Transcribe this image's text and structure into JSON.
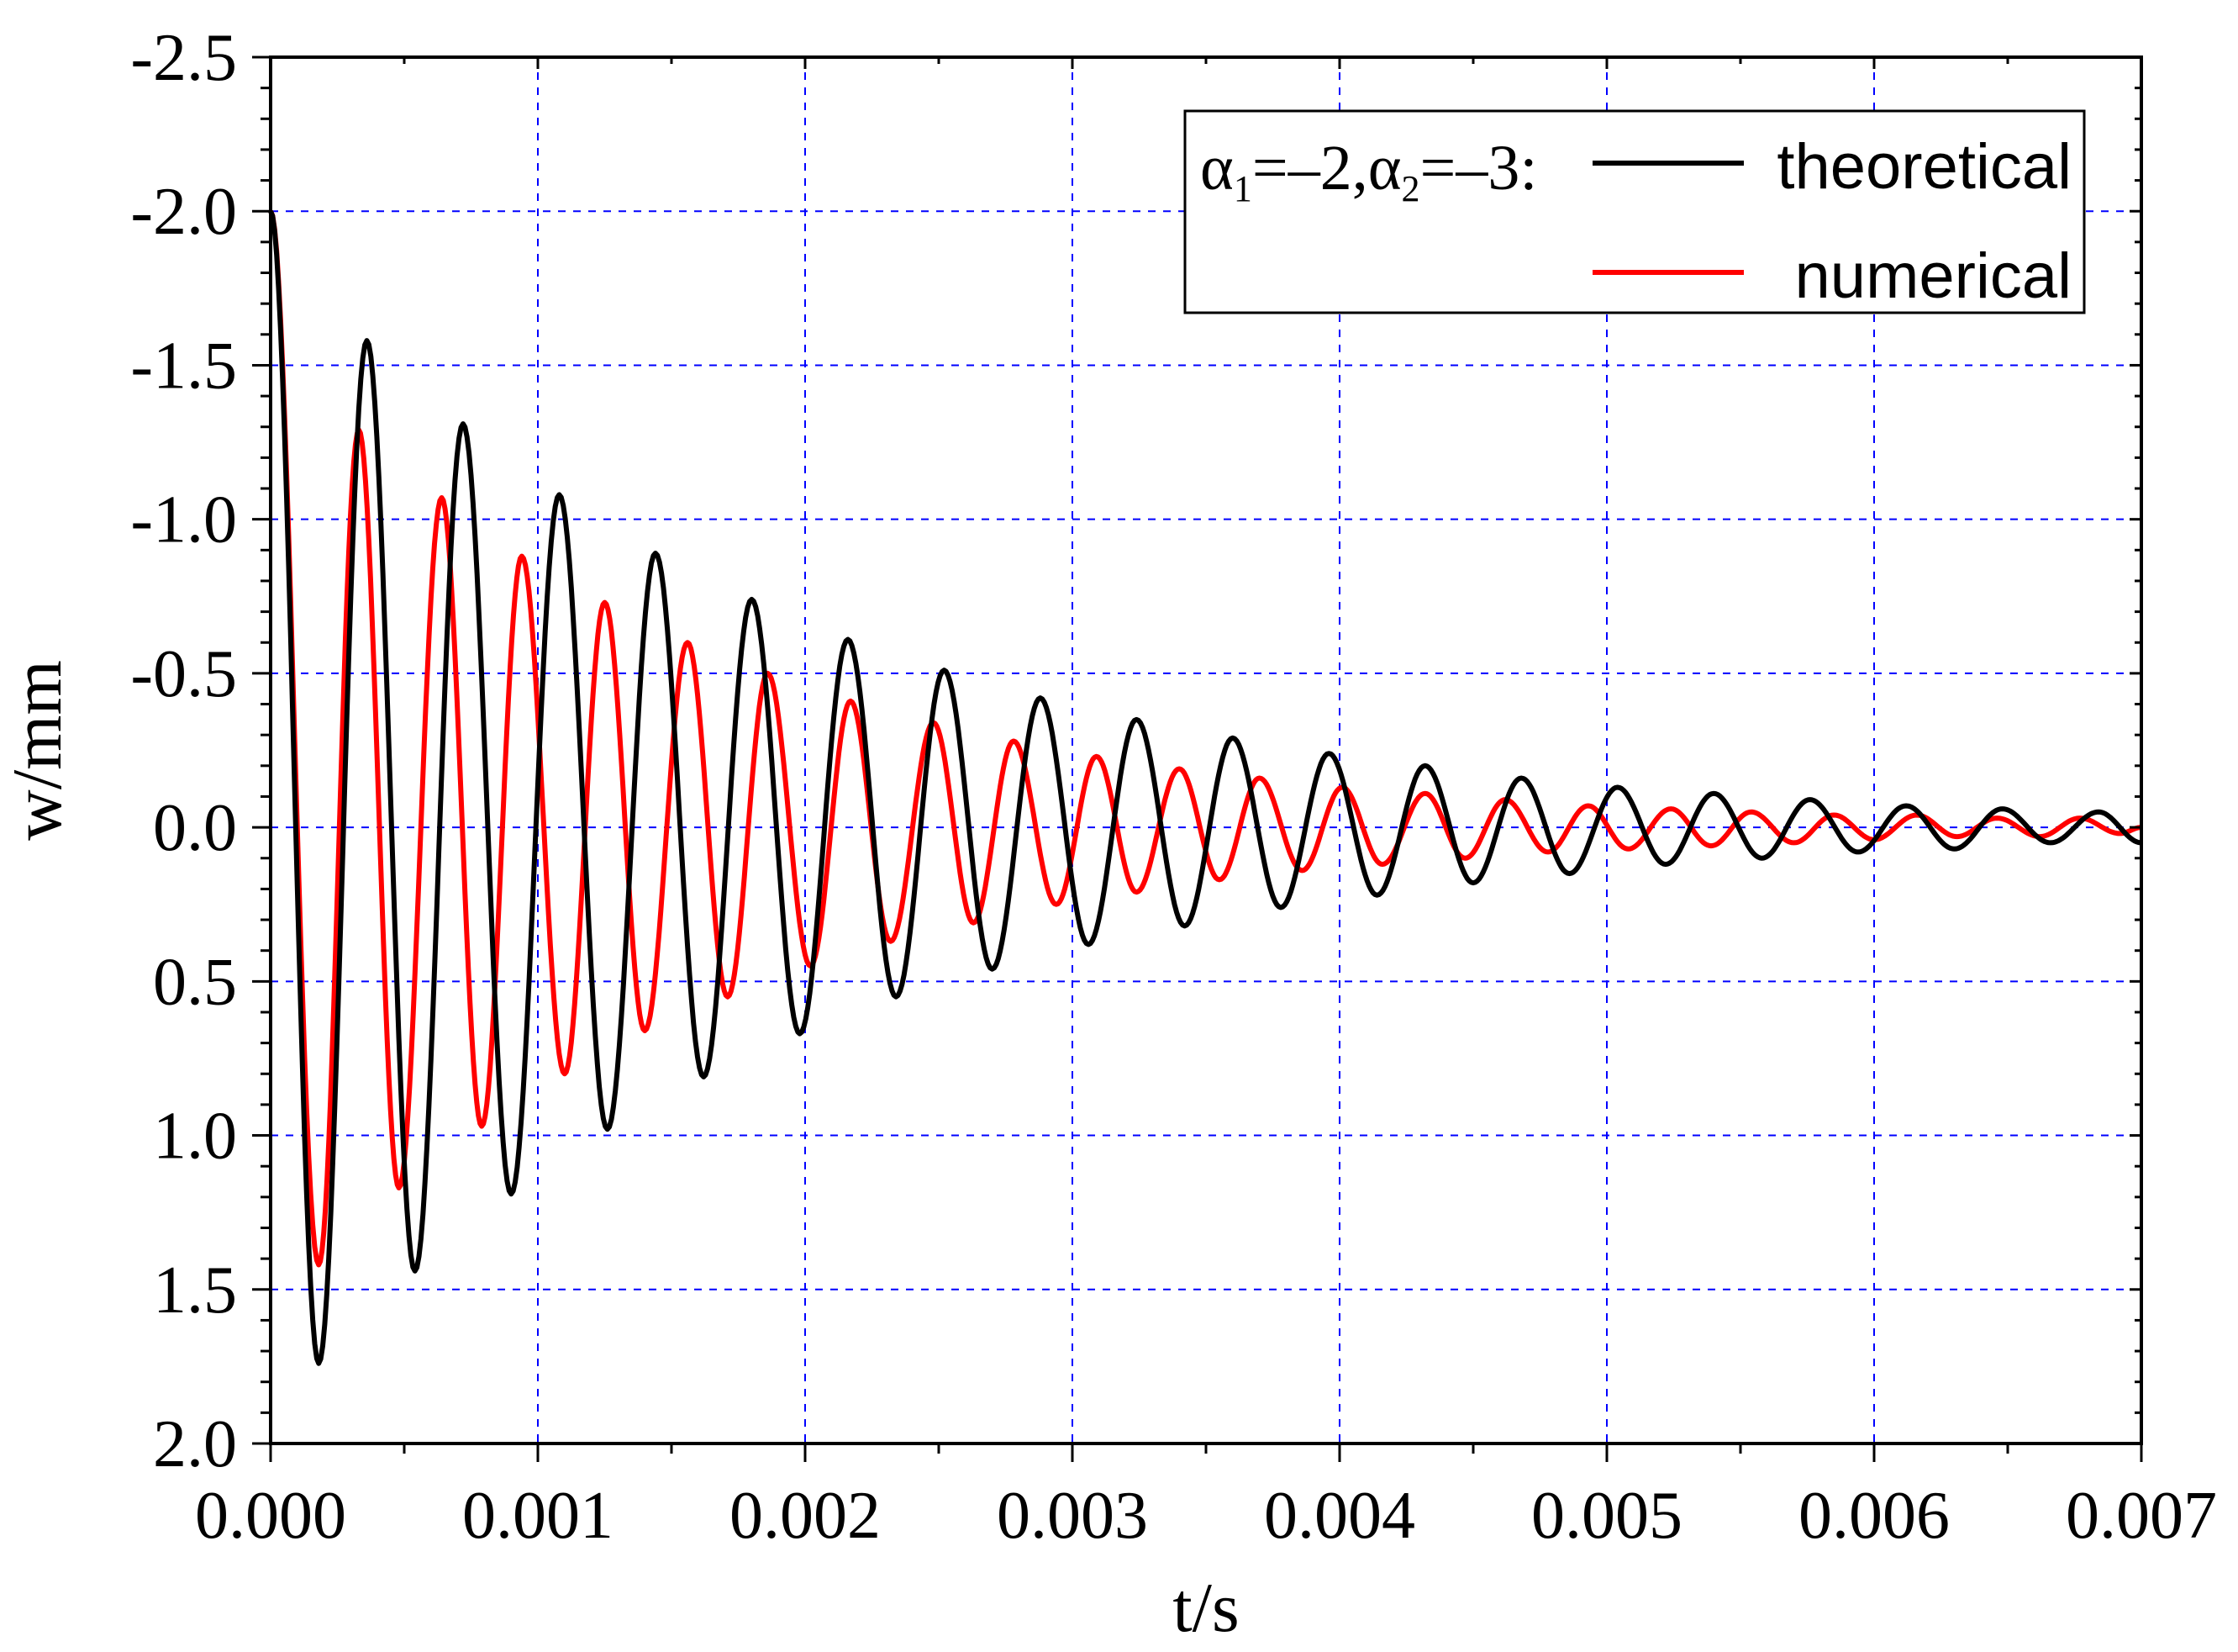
{
  "chart_data": {
    "type": "line",
    "title": "",
    "xlabel": "t/s",
    "ylabel": "w/mm",
    "xlim": [
      0,
      0.007
    ],
    "ylim": [
      2.0,
      -2.5
    ],
    "y_inverted": true,
    "grid": true,
    "legend_position": "top-right",
    "x_ticks": [
      "0.000",
      "0.001",
      "0.002",
      "0.003",
      "0.004",
      "0.005",
      "0.006",
      "0.007"
    ],
    "x_tick_values": [
      0,
      0.001,
      0.002,
      0.003,
      0.004,
      0.005,
      0.006,
      0.007
    ],
    "y_ticks": [
      "-2.5",
      "-2.0",
      "-1.5",
      "-1.0",
      "-0.5",
      "0.0",
      "0.5",
      "1.0",
      "1.5",
      "2.0"
    ],
    "y_tick_values": [
      -2.5,
      -2.0,
      -1.5,
      -1.0,
      -0.5,
      0.0,
      0.5,
      1.0,
      1.5,
      2.0
    ],
    "legend": {
      "prefix": {
        "alpha": "α",
        "sub1": "1",
        "mid": "=–2,",
        "sub2": "2",
        "tail": "=–3:"
      }
    },
    "series": [
      {
        "name": "theoretical",
        "color": "#000000",
        "x": [
          0,
          0.00018,
          0.00036,
          0.00054,
          0.00072,
          0.0009,
          0.00108,
          0.00126,
          0.00144,
          0.00162,
          0.0018,
          0.00198,
          0.00216,
          0.00234,
          0.00252,
          0.0027,
          0.00288,
          0.00306,
          0.00324,
          0.00342,
          0.0036,
          0.00378,
          0.00396,
          0.00414,
          0.00432,
          0.0045,
          0.00468,
          0.00486,
          0.00504,
          0.00522,
          0.0054,
          0.00558,
          0.00576,
          0.00594,
          0.00612,
          0.0063,
          0.00648,
          0.00666,
          0.00684,
          0.007
        ],
        "y": [
          -2.0,
          1.74,
          -1.58,
          1.44,
          -1.31,
          1.19,
          -1.08,
          0.98,
          -0.89,
          0.81,
          -0.74,
          0.67,
          -0.61,
          0.55,
          -0.51,
          0.46,
          -0.42,
          0.38,
          -0.35,
          0.32,
          -0.29,
          0.26,
          -0.24,
          0.22,
          -0.2,
          0.18,
          -0.16,
          0.15,
          -0.13,
          0.12,
          -0.11,
          0.1,
          -0.09,
          0.08,
          -0.07,
          0.07,
          -0.06,
          0.05,
          -0.05,
          0.05
        ]
      },
      {
        "name": "numerical",
        "color": "#ff0000",
        "x": [
          0,
          0.00018,
          0.00033,
          0.00048,
          0.00064,
          0.00079,
          0.00094,
          0.0011,
          0.00125,
          0.0014,
          0.00156,
          0.00171,
          0.00186,
          0.00202,
          0.00217,
          0.00232,
          0.00248,
          0.00263,
          0.00278,
          0.00294,
          0.00309,
          0.00324,
          0.0034,
          0.00355,
          0.0037,
          0.00386,
          0.00401,
          0.00416,
          0.00432,
          0.00447,
          0.00462,
          0.00478,
          0.00493,
          0.00508,
          0.00524,
          0.00539,
          0.00554,
          0.0057,
          0.00585,
          0.006,
          0.00616,
          0.00631,
          0.00646,
          0.00662,
          0.00677,
          0.00692,
          0.007
        ],
        "y": [
          -2.0,
          1.42,
          -1.29,
          1.17,
          -1.07,
          0.97,
          -0.88,
          0.8,
          -0.73,
          0.66,
          -0.6,
          0.55,
          -0.5,
          0.45,
          -0.41,
          0.37,
          -0.34,
          0.31,
          -0.28,
          0.25,
          -0.23,
          0.21,
          -0.19,
          0.17,
          -0.16,
          0.14,
          -0.13,
          0.12,
          -0.11,
          0.1,
          -0.09,
          0.08,
          -0.07,
          0.07,
          -0.06,
          0.06,
          -0.05,
          0.05,
          -0.04,
          0.04,
          -0.04,
          0.03,
          -0.03,
          0.03,
          -0.03,
          0.02,
          0.0
        ]
      }
    ]
  }
}
